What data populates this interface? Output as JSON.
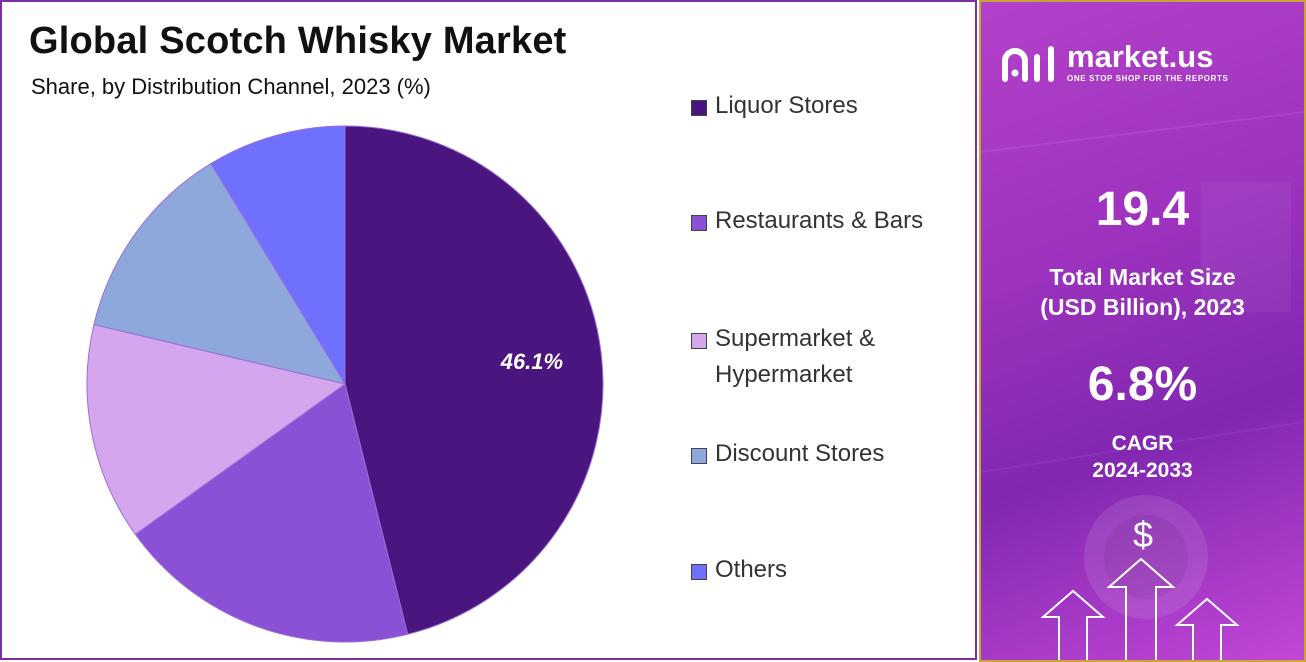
{
  "header": {
    "title": "Global Scotch Whisky Market",
    "subtitle": "Share, by Distribution Channel, 2023 (%)"
  },
  "chart_data": {
    "type": "pie",
    "title": "Global Scotch Whisky Market",
    "subtitle": "Share, by Distribution Channel, 2023 (%)",
    "legend_position": "right",
    "slices": [
      {
        "label": "Liquor Stores",
        "value": 46.1,
        "color": "#4b1580",
        "data_label": "46.1%"
      },
      {
        "label": "Restaurants & Bars",
        "value": 19.0,
        "color": "#8a50d6",
        "data_label": ""
      },
      {
        "label": "Supermarket & Hypermarket",
        "value": 13.6,
        "color": "#d4a6ee",
        "data_label": ""
      },
      {
        "label": "Discount Stores",
        "value": 12.6,
        "color": "#8ea8dc",
        "data_label": ""
      },
      {
        "label": "Others",
        "value": 8.7,
        "color": "#7070ff",
        "data_label": ""
      }
    ]
  },
  "legend": {
    "items": [
      {
        "label": "Liquor Stores",
        "color": "#4b1580"
      },
      {
        "label": "Restaurants & Bars",
        "color": "#8a50d6"
      },
      {
        "label": "Supermarket & Hypermarket",
        "color": "#d4a6ee"
      },
      {
        "label": "Discount Stores",
        "color": "#8ea8dc"
      },
      {
        "label": "Others",
        "color": "#7070ff"
      }
    ]
  },
  "sidebar": {
    "brand_name": "market.us",
    "brand_tagline": "ONE STOP SHOP FOR THE REPORTS",
    "market_size_value": "19.4",
    "market_size_label_line1": "Total Market Size",
    "market_size_label_line2": "(USD Billion), 2023",
    "cagr_value": "6.8%",
    "cagr_label_line1": "CAGR",
    "cagr_label_line2": "2024-2033",
    "dollar_symbol": "$",
    "accent_color": "#9b2bbd",
    "border_color": "#c9a238"
  }
}
